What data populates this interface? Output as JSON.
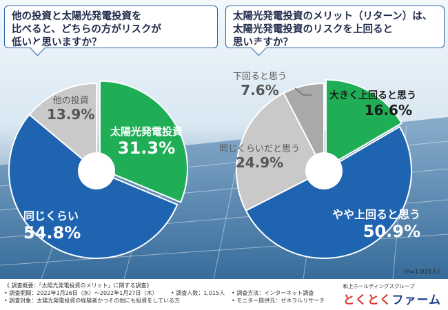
{
  "questions": {
    "left": [
      "他の投資と太陽光発電投資を",
      "比べると、どちらの方がリスクが",
      "低いと思いますか？"
    ],
    "right": [
      "太陽光発電投資のメリット（リターン）は、",
      "太陽光発電投資のリスクを上回ると",
      "思いますか？"
    ]
  },
  "chart_data": [
    {
      "type": "pie",
      "title": "他の投資と太陽光発電投資を比べると、どちらの方がリスクが低いと思いますか？",
      "slices": [
        {
          "label": "太陽光発電投資",
          "value": 31.3,
          "display": "31.3%",
          "color": "#1fae55"
        },
        {
          "label": "同じくらい",
          "value": 54.8,
          "display": "54.8%",
          "color": "#1f64b0"
        },
        {
          "label": "他の投資",
          "value": 13.9,
          "display": "13.9%",
          "color": "#c9c9c9"
        }
      ]
    },
    {
      "type": "pie",
      "title": "太陽光発電投資のメリット（リターン）は、太陽光発電投資のリスクを上回ると思いますか？",
      "slices": [
        {
          "label": "大きく上回ると思う",
          "value": 16.6,
          "display": "16.6%",
          "color": "#1fae55"
        },
        {
          "label": "やや上回ると思う",
          "value": 50.9,
          "display": "50.9%",
          "color": "#1f64b0"
        },
        {
          "label": "同じくらいだと思う",
          "value": 24.9,
          "display": "24.9%",
          "color": "#c9c9c9"
        },
        {
          "label": "下回ると思う",
          "value": 7.6,
          "display": "7.6%",
          "color": "#a9a9a9"
        }
      ]
    }
  ],
  "note": "(n=1,015人)",
  "footer": {
    "col1": [
      "《 調査概要：「太陽光発電投資のメリット」に関する調査》",
      "• 調査期間：2022年1月26日（水）〜2022年1月27日（木）",
      "• 調査対象：太陽光発電投資の経験者かつその他にも投資をしている方"
    ],
    "col2": [
      "• 調査人数：1,015人"
    ],
    "col3": [
      "• 調査方法：インターネット調査",
      "• モニター提供元：ゼネラルリサーチ"
    ]
  },
  "logo": {
    "group": "和上ホールディングスグループ",
    "mark_colored": "とくとく",
    "mark_rest": "ファーム"
  }
}
